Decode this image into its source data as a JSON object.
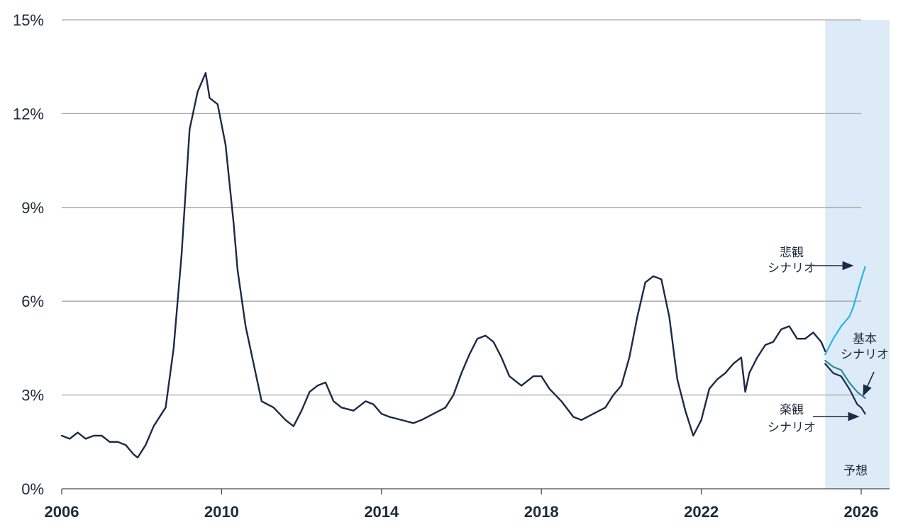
{
  "chart_data": {
    "type": "line",
    "title": "",
    "xlabel": "",
    "ylabel": "",
    "xlim": [
      2006,
      2027
    ],
    "ylim": [
      0,
      15
    ],
    "grid": "horizontal",
    "x_ticks": [
      2006,
      2010,
      2014,
      2018,
      2022,
      2026
    ],
    "x_tick_labels": [
      "2006",
      "2010",
      "2014",
      "2018",
      "2022",
      "2026"
    ],
    "y_ticks": [
      0,
      3,
      6,
      9,
      12,
      15
    ],
    "y_tick_labels": [
      "0%",
      "3%",
      "6%",
      "9%",
      "12%",
      "15%"
    ],
    "forecast_region": {
      "x_start": 2025.1,
      "x_end": 2027,
      "label": "予想",
      "color": "#dcebf7"
    },
    "colors": {
      "actual": "#1b2a47",
      "pessimistic": "#27b4e6",
      "base": "#2c8aa0",
      "optimistic": "#1b2a47",
      "grid": "#a6a6a6"
    },
    "annotations": {
      "pessimistic": {
        "line1": "悲観",
        "line2": "シナリオ"
      },
      "base": {
        "line1": "基本",
        "line2": "シナリオ"
      },
      "optimistic": {
        "line1": "楽観",
        "line2": "シナリオ"
      }
    },
    "series": [
      {
        "key": "actual",
        "x": [
          2006.0,
          2006.2,
          2006.4,
          2006.6,
          2006.8,
          2007.0,
          2007.2,
          2007.4,
          2007.6,
          2007.8,
          2007.9,
          2008.1,
          2008.3,
          2008.6,
          2008.8,
          2009.0,
          2009.2,
          2009.4,
          2009.6,
          2009.7,
          2009.9,
          2010.1,
          2010.3,
          2010.4,
          2010.6,
          2010.8,
          2011.0,
          2011.3,
          2011.6,
          2011.8,
          2012.0,
          2012.2,
          2012.4,
          2012.6,
          2012.8,
          2013.0,
          2013.3,
          2013.6,
          2013.8,
          2014.0,
          2014.2,
          2014.5,
          2014.8,
          2015.0,
          2015.3,
          2015.6,
          2015.8,
          2016.0,
          2016.2,
          2016.4,
          2016.6,
          2016.8,
          2017.0,
          2017.2,
          2017.5,
          2017.8,
          2018.0,
          2018.2,
          2018.5,
          2018.8,
          2019.0,
          2019.3,
          2019.6,
          2019.8,
          2020.0,
          2020.2,
          2020.4,
          2020.6,
          2020.8,
          2021.0,
          2021.2,
          2021.4,
          2021.6,
          2021.8,
          2022.0,
          2022.2,
          2022.4,
          2022.6,
          2022.8,
          2023.0,
          2023.1,
          2023.2,
          2023.4,
          2023.6,
          2023.8,
          2024.0,
          2024.2,
          2024.4,
          2024.6,
          2024.8,
          2025.0,
          2025.1
        ],
        "y": [
          1.7,
          1.6,
          1.8,
          1.6,
          1.7,
          1.7,
          1.5,
          1.5,
          1.4,
          1.1,
          1.0,
          1.4,
          2.0,
          2.6,
          4.5,
          7.5,
          11.5,
          12.7,
          13.3,
          12.5,
          12.3,
          11.0,
          8.5,
          7.0,
          5.2,
          4.0,
          2.8,
          2.6,
          2.2,
          2.0,
          2.5,
          3.1,
          3.3,
          3.4,
          2.8,
          2.6,
          2.5,
          2.8,
          2.7,
          2.4,
          2.3,
          2.2,
          2.1,
          2.2,
          2.4,
          2.6,
          3.0,
          3.7,
          4.3,
          4.8,
          4.9,
          4.7,
          4.2,
          3.6,
          3.3,
          3.6,
          3.6,
          3.2,
          2.8,
          2.3,
          2.2,
          2.4,
          2.6,
          3.0,
          3.3,
          4.2,
          5.5,
          6.6,
          6.8,
          6.7,
          5.5,
          3.5,
          2.5,
          1.7,
          2.2,
          3.2,
          3.5,
          3.7,
          4.0,
          4.2,
          3.1,
          3.7,
          4.2,
          4.6,
          4.7,
          5.1,
          5.2,
          4.8,
          4.8,
          5.0,
          4.7,
          4.4
        ]
      },
      {
        "key": "pessimistic",
        "x": [
          2025.1,
          2025.3,
          2025.5,
          2025.7,
          2025.8,
          2026.0,
          2026.1
        ],
        "y": [
          4.3,
          4.8,
          5.2,
          5.5,
          5.8,
          6.7,
          7.1
        ]
      },
      {
        "key": "base",
        "x": [
          2025.1,
          2025.3,
          2025.5,
          2025.7,
          2025.9,
          2026.1
        ],
        "y": [
          4.1,
          3.9,
          3.8,
          3.4,
          3.1,
          2.9
        ]
      },
      {
        "key": "optimistic",
        "x": [
          2025.1,
          2025.3,
          2025.5,
          2025.7,
          2025.9,
          2026.0,
          2026.1
        ],
        "y": [
          4.0,
          3.7,
          3.6,
          3.2,
          2.7,
          2.6,
          2.4
        ]
      }
    ]
  }
}
